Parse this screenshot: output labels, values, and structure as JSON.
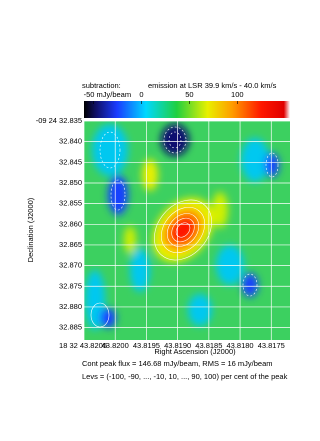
{
  "chart_data": {
    "type": "image",
    "subtitle_left": "subtraction:",
    "subtitle_right": "emission at LSR 39.9 km/s - 40.0 km/s",
    "colorbar": {
      "clim": [
        -60,
        155
      ],
      "ticks": [
        {
          "value": -50,
          "label": "-50 mJy/beam"
        },
        0,
        50,
        100
      ]
    },
    "xlabel": "Right Ascension (J2000)",
    "ylabel": "Declination (J2000)",
    "xlim": [
      43.8205,
      43.8172
    ],
    "xticks": [
      {
        "value": 43.8205,
        "label": "18 32 43.8205"
      },
      {
        "value": 43.82,
        "label": "43.8200"
      },
      {
        "value": 43.8195,
        "label": "43.8195"
      },
      {
        "value": 43.819,
        "label": "43.8190"
      },
      {
        "value": 43.8185,
        "label": "43.8185"
      },
      {
        "value": 43.818,
        "label": "43.8180"
      },
      {
        "value": 43.8175,
        "label": "43.8175"
      }
    ],
    "ylim": [
      32.835,
      32.888
    ],
    "yticks": [
      {
        "value": 32.835,
        "label": "-09 24 32.835"
      },
      {
        "value": 32.84,
        "label": "32.840"
      },
      {
        "value": 32.845,
        "label": "32.845"
      },
      {
        "value": 32.85,
        "label": "32.850"
      },
      {
        "value": 32.855,
        "label": "32.855"
      },
      {
        "value": 32.86,
        "label": "32.860"
      },
      {
        "value": 32.865,
        "label": "32.865"
      },
      {
        "value": 32.87,
        "label": "32.870"
      },
      {
        "value": 32.875,
        "label": "32.875"
      },
      {
        "value": 32.88,
        "label": "32.880"
      },
      {
        "value": 32.885,
        "label": "32.885"
      }
    ],
    "grid": true,
    "notes": [
      "Cont peak flux =  146.68 mJy/beam,      RMS = 16 mJy/beam",
      "Levs = (-100, -90, ..., -10, 10, ..., 90, 100) per cent of the peak"
    ]
  }
}
